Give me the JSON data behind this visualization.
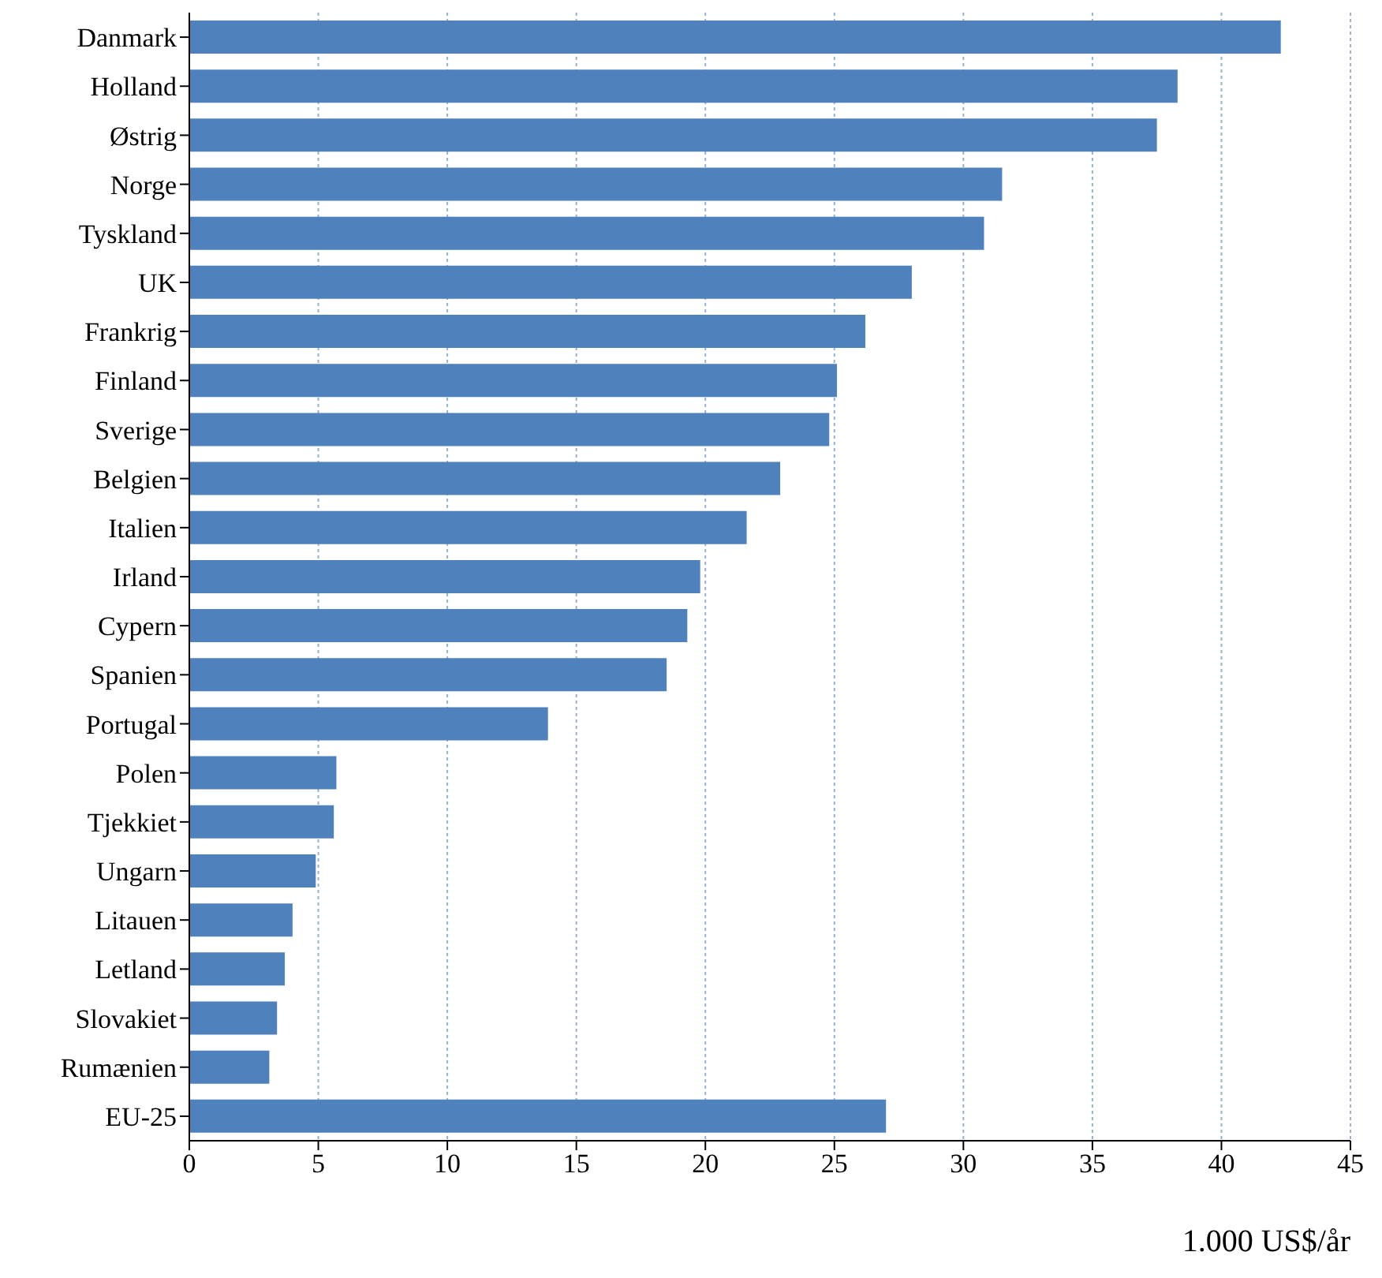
{
  "chart_data": {
    "type": "bar",
    "orientation": "horizontal",
    "xlabel": "1.000 US$/år",
    "categories": [
      "Danmark",
      "Holland",
      "Østrig",
      "Norge",
      "Tyskland",
      "UK",
      "Frankrig",
      "Finland",
      "Sverige",
      "Belgien",
      "Italien",
      "Irland",
      "Cypern",
      "Spanien",
      "Portugal",
      "Polen",
      "Tjekkiet",
      "Ungarn",
      "Litauen",
      "Letland",
      "Slovakiet",
      "Rumænien",
      "EU-25"
    ],
    "values": [
      42.3,
      38.3,
      37.5,
      31.5,
      30.8,
      28.0,
      26.2,
      25.1,
      24.8,
      22.9,
      21.6,
      19.8,
      19.3,
      18.5,
      13.9,
      5.7,
      5.6,
      4.9,
      4.0,
      3.7,
      3.4,
      3.1,
      27.0
    ],
    "color": "#4f81bd",
    "xlim": [
      0,
      45
    ],
    "xticks": [
      0,
      5,
      10,
      15,
      20,
      25,
      30,
      35,
      40,
      45
    ],
    "grid": "x",
    "legend": false
  }
}
